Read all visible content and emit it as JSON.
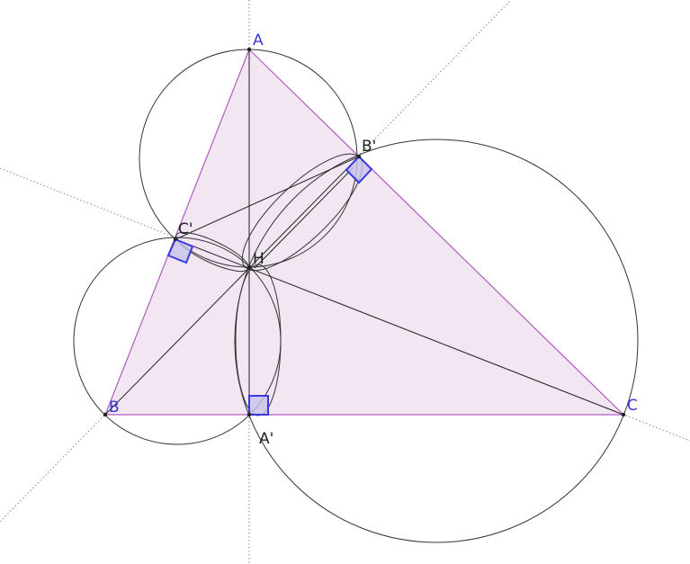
{
  "labels": {
    "A": "A",
    "B": "B",
    "C": "C",
    "A_foot": "A'",
    "B_foot": "B'",
    "C_foot": "C'",
    "H": "H"
  },
  "colors": {
    "triangle_fill": "#efe3f0",
    "triangle_stroke": "#b05cc0",
    "vertex_label": "#3a3ad6",
    "foot_label": "#222222",
    "right_angle": "#3838e0",
    "right_angle_fill": "#c8c4ec",
    "circle": "#333333",
    "dotted_line": "#888888"
  }
}
